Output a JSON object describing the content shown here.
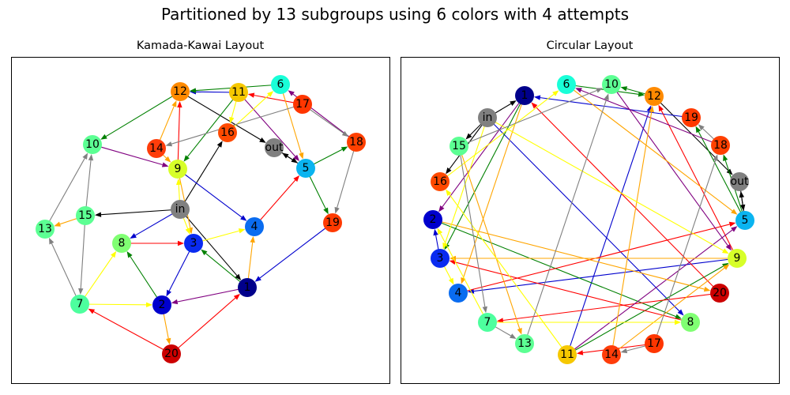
{
  "suptitle": "Partitioned by 13 subgroups using 6 colors with 4 attempts",
  "panels": [
    {
      "key": "left",
      "title": "Kamada-Kawai Layout",
      "positions": {
        "12": [
          228,
          116
        ],
        "11": [
          302,
          117
        ],
        "6": [
          355,
          107
        ],
        "17": [
          383,
          132
        ],
        "10": [
          117,
          183
        ],
        "14": [
          198,
          188
        ],
        "16": [
          288,
          168
        ],
        "out": [
          347,
          187
        ],
        "18": [
          451,
          180
        ],
        "5": [
          387,
          213
        ],
        "9": [
          225,
          214
        ],
        "in": [
          228,
          265
        ],
        "15": [
          108,
          273
        ],
        "13": [
          57,
          290
        ],
        "4": [
          322,
          287
        ],
        "19": [
          421,
          282
        ],
        "8": [
          154,
          308
        ],
        "3": [
          245,
          308
        ],
        "1": [
          313,
          364
        ],
        "7": [
          101,
          385
        ],
        "2": [
          205,
          386
        ],
        "20": [
          217,
          448
        ]
      }
    },
    {
      "key": "right",
      "title": "Circular Layout",
      "positions": {
        "6": [
          717,
          107
        ],
        "10": [
          774,
          107
        ],
        "1": [
          664,
          121
        ],
        "12": [
          828,
          122
        ],
        "in": [
          617,
          149
        ],
        "19": [
          875,
          149
        ],
        "15": [
          581,
          185
        ],
        "18": [
          912,
          184
        ],
        "16": [
          557,
          230
        ],
        "out": [
          936,
          230
        ],
        "2": [
          548,
          278
        ],
        "5": [
          943,
          279
        ],
        "3": [
          557,
          327
        ],
        "9": [
          933,
          327
        ],
        "4": [
          580,
          371
        ],
        "20": [
          911,
          371
        ],
        "7": [
          617,
          408
        ],
        "8": [
          874,
          408
        ],
        "13": [
          664,
          435
        ],
        "17": [
          828,
          435
        ],
        "11": [
          718,
          449
        ],
        "14": [
          774,
          449
        ]
      }
    }
  ],
  "node_colors": {
    "1": "#00008b",
    "2": "#0000cd",
    "3": "#0a2bf0",
    "4": "#0a6cf0",
    "5": "#0ab4f0",
    "6": "#19ffd8",
    "7": "#4dff9e",
    "8": "#80ff73",
    "9": "#d7ff29",
    "10": "#5cff93",
    "11": "#f6c800",
    "12": "#ff8a00",
    "13": "#5cff93",
    "14": "#ff3d0a",
    "15": "#5cff93",
    "16": "#ff4a00",
    "17": "#ff3600",
    "18": "#ff4000",
    "19": "#ff3a00",
    "20": "#cc0000",
    "in": "#808080",
    "out": "#808080"
  },
  "edges": [
    {
      "from": "in",
      "to": "15",
      "color": "#000000"
    },
    {
      "from": "in",
      "to": "16",
      "color": "#000000"
    },
    {
      "from": "in",
      "to": "1",
      "color": "#000000"
    },
    {
      "from": "12",
      "to": "out",
      "color": "#000000"
    },
    {
      "from": "5",
      "to": "out",
      "color": "#000000"
    },
    {
      "from": "out",
      "to": "5",
      "color": "#000000"
    },
    {
      "from": "11",
      "to": "12",
      "color": "#0000cd"
    },
    {
      "from": "19",
      "to": "1",
      "color": "#0000cd"
    },
    {
      "from": "3",
      "to": "2",
      "color": "#0000cd"
    },
    {
      "from": "9",
      "to": "4",
      "color": "#0000cd"
    },
    {
      "from": "in",
      "to": "8",
      "color": "#0000cd"
    },
    {
      "from": "12",
      "to": "10",
      "color": "#008000"
    },
    {
      "from": "6",
      "to": "12",
      "color": "#008000"
    },
    {
      "from": "11",
      "to": "9",
      "color": "#008000"
    },
    {
      "from": "5",
      "to": "18",
      "color": "#008000"
    },
    {
      "from": "5",
      "to": "19",
      "color": "#008000"
    },
    {
      "from": "1",
      "to": "3",
      "color": "#008000"
    },
    {
      "from": "2",
      "to": "8",
      "color": "#008000"
    },
    {
      "from": "17",
      "to": "11",
      "color": "#ff0000"
    },
    {
      "from": "9",
      "to": "12",
      "color": "#ff0000"
    },
    {
      "from": "4",
      "to": "5",
      "color": "#ff0000"
    },
    {
      "from": "8",
      "to": "3",
      "color": "#ff0000"
    },
    {
      "from": "20",
      "to": "1",
      "color": "#ff0000"
    },
    {
      "from": "20",
      "to": "7",
      "color": "#ff0000"
    },
    {
      "from": "10",
      "to": "9",
      "color": "#800080"
    },
    {
      "from": "11",
      "to": "5",
      "color": "#800080"
    },
    {
      "from": "18",
      "to": "6",
      "color": "#800080"
    },
    {
      "from": "1",
      "to": "2",
      "color": "#800080"
    },
    {
      "from": "14",
      "to": "12",
      "color": "#ffa500"
    },
    {
      "from": "6",
      "to": "5",
      "color": "#ffa500"
    },
    {
      "from": "9",
      "to": "3",
      "color": "#ffa500"
    },
    {
      "from": "15",
      "to": "13",
      "color": "#ffa500"
    },
    {
      "from": "1",
      "to": "4",
      "color": "#ffa500"
    },
    {
      "from": "2",
      "to": "20",
      "color": "#ffa500"
    },
    {
      "from": "14",
      "to": "9",
      "color": "#ffa500"
    },
    {
      "from": "16",
      "to": "6",
      "color": "#ffff00"
    },
    {
      "from": "11",
      "to": "16",
      "color": "#ffff00"
    },
    {
      "from": "in",
      "to": "9",
      "color": "#ffff00"
    },
    {
      "from": "in",
      "to": "3",
      "color": "#ffff00"
    },
    {
      "from": "3",
      "to": "4",
      "color": "#ffff00"
    },
    {
      "from": "7",
      "to": "8",
      "color": "#ffff00"
    },
    {
      "from": "7",
      "to": "2",
      "color": "#ffff00"
    },
    {
      "from": "17",
      "to": "14",
      "color": "#808080"
    },
    {
      "from": "17",
      "to": "18",
      "color": "#808080"
    },
    {
      "from": "18",
      "to": "19",
      "color": "#808080"
    },
    {
      "from": "13",
      "to": "10",
      "color": "#808080"
    },
    {
      "from": "15",
      "to": "10",
      "color": "#808080"
    },
    {
      "from": "15",
      "to": "7",
      "color": "#808080"
    },
    {
      "from": "7",
      "to": "13",
      "color": "#808080"
    }
  ]
}
